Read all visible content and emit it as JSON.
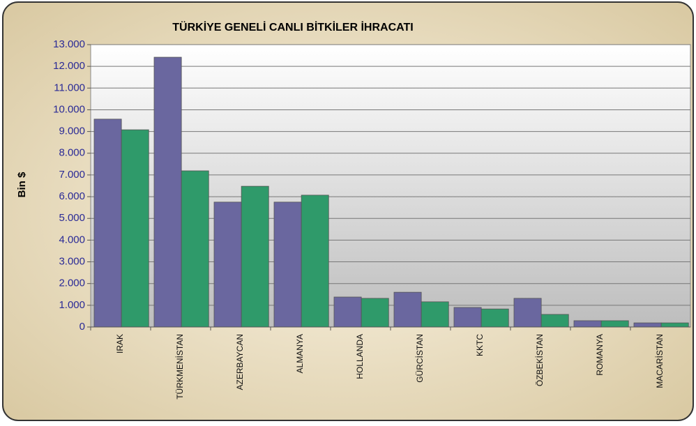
{
  "chart_data": {
    "type": "bar",
    "title": "TÜRKİYE GENELİ CANLI BİTKİLER İHRACATI",
    "y_label": "Bin $",
    "categories": [
      "IRAK",
      "TÜRKMENİSTAN",
      "AZERBAYCAN",
      "ALMANYA",
      "HOLLANDA",
      "GÜRCİSTAN",
      "KKTC",
      "ÖZBEKİSTAN",
      "ROMANYA",
      "MACARİSTAN"
    ],
    "series": [
      {
        "color": "#6a679f",
        "values": [
          9570,
          12420,
          5750,
          5750,
          1380,
          1600,
          900,
          1320,
          290,
          190
        ]
      },
      {
        "color": "#2f9a6a",
        "values": [
          9080,
          7190,
          6480,
          6070,
          1320,
          1160,
          830,
          580,
          290,
          190
        ]
      }
    ],
    "ylim": [
      0,
      13000
    ],
    "yticks": [
      0,
      {
        "value": 1000,
        "label": "1.000"
      },
      {
        "value": 2000,
        "label": "2.000"
      },
      {
        "value": 3000,
        "label": "3.000"
      },
      {
        "value": 4000,
        "label": "4.000"
      },
      {
        "value": 5000,
        "label": "5.000"
      },
      {
        "value": 6000,
        "label": "6.000"
      },
      {
        "value": 7000,
        "label": "7.000"
      },
      {
        "value": 8000,
        "label": "8.000"
      },
      {
        "value": 9000,
        "label": "9.000"
      },
      {
        "value": 10000,
        "label": "10.000"
      },
      {
        "value": 11000,
        "label": "11.000"
      },
      {
        "value": 12000,
        "label": "12.000"
      },
      {
        "value": 13000,
        "label": "13.000"
      }
    ],
    "grid": true
  }
}
